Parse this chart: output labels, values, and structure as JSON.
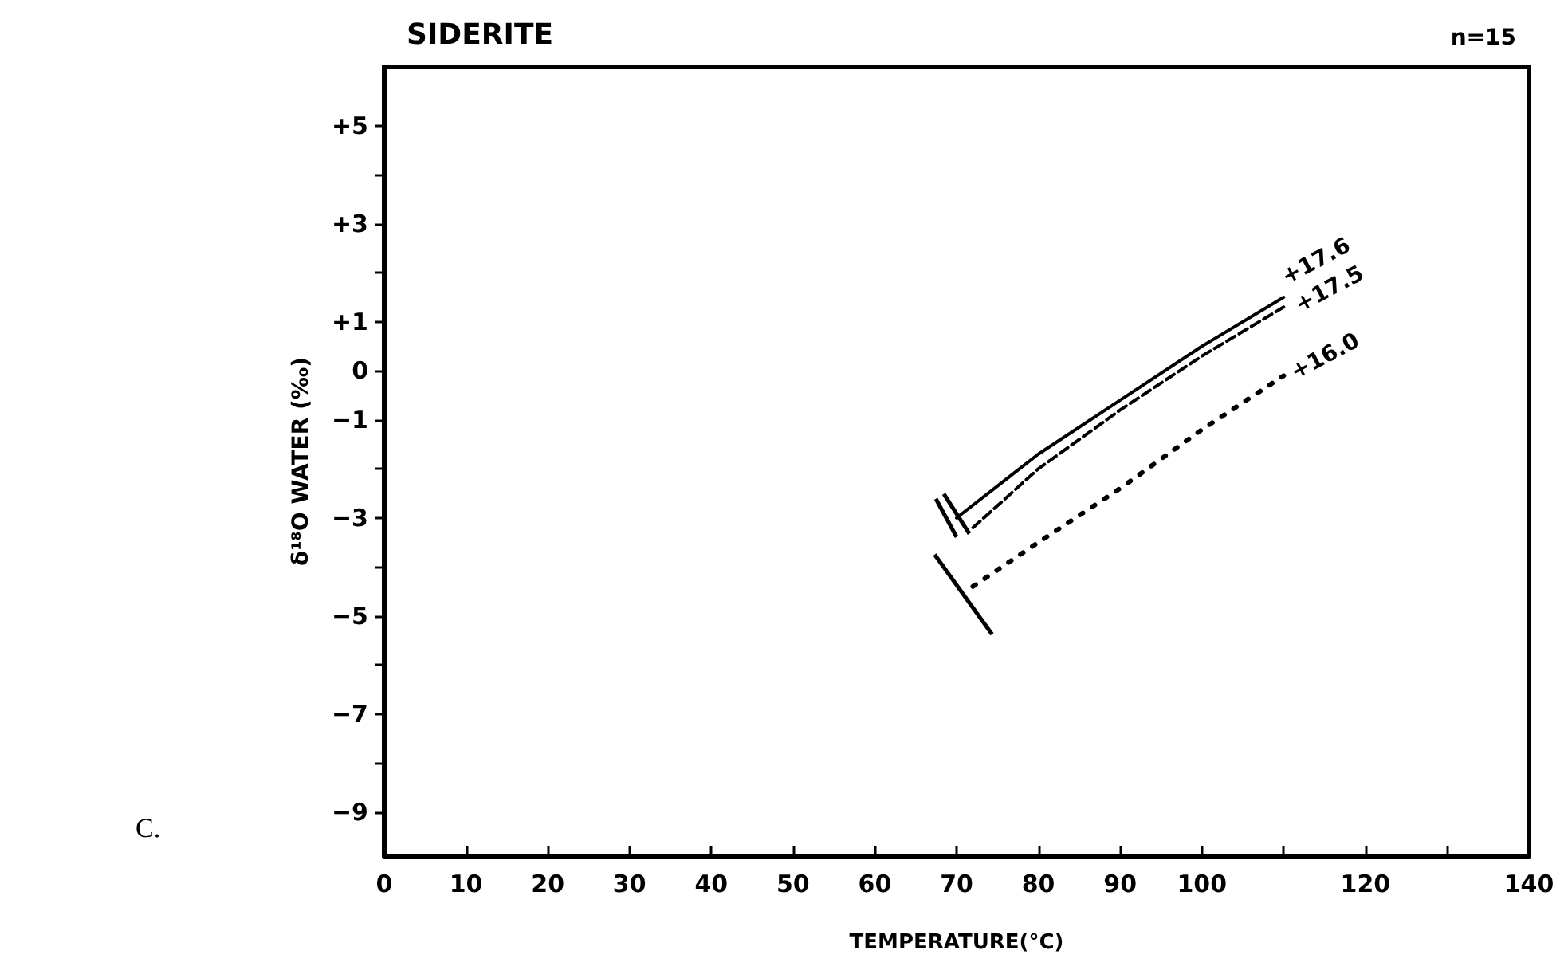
{
  "chart_data": {
    "type": "line",
    "title": "SIDERITE",
    "xlabel": "TEMPERATURE(°C)",
    "ylabel": "δ¹⁸O WATER (‰)",
    "annotations": [
      "n=15",
      "C."
    ],
    "xlim": [
      0,
      140
    ],
    "xticks": [
      0,
      10,
      20,
      30,
      40,
      50,
      60,
      70,
      80,
      90,
      100,
      {
        "value": 110,
        "label": null
      },
      120,
      {
        "value": 130,
        "label": null
      },
      140
    ],
    "ylim": [
      -9.9,
      6.2
    ],
    "yticks": [
      {
        "value": -9,
        "label": "−9"
      },
      {
        "value": -8,
        "label": null
      },
      {
        "value": -7,
        "label": "−7"
      },
      {
        "value": -6,
        "label": null
      },
      {
        "value": -5,
        "label": "−5"
      },
      {
        "value": -4,
        "label": null
      },
      {
        "value": -3,
        "label": "−3"
      },
      {
        "value": -2,
        "label": null
      },
      {
        "value": -1,
        "label": "−1"
      },
      0,
      {
        "value": 1,
        "label": "+1"
      },
      {
        "value": 2,
        "label": null
      },
      {
        "value": 3,
        "label": "+3"
      },
      {
        "value": 4,
        "label": null
      },
      {
        "value": 5,
        "label": "+5"
      }
    ],
    "grid": false,
    "legend": false,
    "marker": "none",
    "series": [
      {
        "name": "+17.6",
        "color": "#000000",
        "line_style": "solid",
        "x": [
          70,
          80,
          90,
          100,
          110
        ],
        "values": [
          -3.0,
          -1.7,
          -0.6,
          0.5,
          1.5
        ]
      },
      {
        "name": "+17.5",
        "color": "#000000",
        "line_style": "dashed",
        "x": [
          72,
          80,
          90,
          100,
          110
        ],
        "values": [
          -3.2,
          -2.0,
          -0.8,
          0.3,
          1.3
        ]
      },
      {
        "name": "+16.0",
        "color": "#000000",
        "line_style": "dotted",
        "x": [
          72,
          80,
          90,
          100,
          110
        ],
        "values": [
          -4.4,
          -3.5,
          -2.4,
          -1.2,
          -0.1
        ]
      }
    ]
  }
}
